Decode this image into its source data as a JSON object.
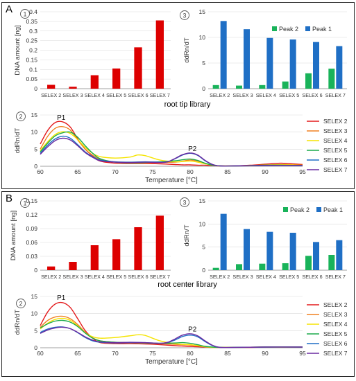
{
  "panels": [
    {
      "letter": "A",
      "library_title": "root tip library",
      "dna_chart": {
        "marker": "1",
        "type": "bar",
        "categories": [
          "SELEX 2",
          "SELEX 3",
          "SELEX 4",
          "SELEX 5",
          "SELEX 6",
          "SELEX 7"
        ],
        "values": [
          0.02,
          0.01,
          0.07,
          0.105,
          0.215,
          0.355
        ],
        "ylabel": "DNA amount [ng]",
        "ylim": [
          0,
          0.4
        ],
        "yticks": [
          0,
          0.05,
          0.1,
          0.15,
          0.2,
          0.25,
          0.3,
          0.35,
          0.4
        ],
        "ytick_labels": [
          "0",
          "0.05",
          "0.1",
          "0.15",
          "0.2",
          "0.25",
          "0.3",
          "0.35",
          "0.4"
        ],
        "color": "#dd0000"
      },
      "peak_chart": {
        "marker": "3",
        "type": "bar",
        "categories": [
          "SELEX 2",
          "SELEX 3",
          "SELEX 4",
          "SELEX 5",
          "SELEX 6",
          "SELEX 7"
        ],
        "ylabel": "ddRn/dT",
        "ylim": [
          0,
          15
        ],
        "yticks": [
          0,
          5,
          10,
          15
        ],
        "ytick_labels": [
          "0",
          "5",
          "10",
          "15"
        ],
        "legend_position": "top-right",
        "series": [
          {
            "name": "Peak 2",
            "color": "#19b35a",
            "values": [
              0.7,
              0.6,
              0.7,
              1.4,
              3.0,
              3.9
            ]
          },
          {
            "name": "Peak 1",
            "color": "#1f6fc5",
            "values": [
              13.2,
              11.6,
              9.9,
              9.6,
              9.1,
              8.3
            ]
          }
        ]
      },
      "melt_chart": {
        "marker": "2",
        "type": "line",
        "xlabel": "Temperature [°C]",
        "ylabel": "ddRn/dT",
        "xlim": [
          60,
          95
        ],
        "ylim": [
          0,
          15
        ],
        "xticks": [
          60,
          65,
          70,
          75,
          80,
          85,
          90,
          95
        ],
        "xtick_labels": [
          "60",
          "65",
          "70",
          "75",
          "80",
          "85",
          "90",
          "95"
        ],
        "yticks": [
          0,
          5,
          10,
          15
        ],
        "ytick_labels": [
          "0",
          "5",
          "10",
          "15"
        ],
        "annotations": [
          {
            "text": "P1",
            "x": 62.8,
            "y": 13.6
          },
          {
            "text": "P2",
            "x": 80.3,
            "y": 4.5
          }
        ],
        "series": [
          {
            "name": "SELEX 2",
            "color": "#e31a1c",
            "x": [
              60,
              61,
              62,
              63,
              64,
              65,
              66,
              67,
              68,
              70,
              72,
              74,
              76,
              78,
              79,
              80,
              81,
              82,
              83,
              84,
              86,
              88,
              90,
              92,
              93,
              95
            ],
            "y": [
              6.5,
              10.5,
              12.8,
              13.0,
              11.5,
              8,
              5,
              3,
              1.5,
              0.9,
              0.8,
              0.8,
              0.7,
              0.5,
              0.4,
              0.4,
              0.3,
              0.3,
              0.2,
              0.1,
              0.1,
              0.3,
              0.6,
              0.9,
              0.8,
              0.5
            ]
          },
          {
            "name": "SELEX 3",
            "color": "#f08020",
            "x": [
              60,
              61,
              62,
              63,
              64,
              65,
              66,
              67,
              68,
              70,
              72,
              74,
              76,
              78,
              79,
              80,
              81,
              82,
              83,
              84,
              86,
              88,
              90,
              92,
              93,
              95
            ],
            "y": [
              5,
              8.8,
              11.1,
              11.6,
              10.6,
              7.7,
              5,
              3.2,
              2,
              1.2,
              1.0,
              1.0,
              1.1,
              1.2,
              1.5,
              1.8,
              1.5,
              0.8,
              0.3,
              0.1,
              0.1,
              0.2,
              0.4,
              0.5,
              0.5,
              0.3
            ]
          },
          {
            "name": "SELEX 4",
            "color": "#f5e400",
            "x": [
              60,
              61,
              62,
              63,
              64,
              65,
              66,
              67,
              68,
              70,
              72,
              73,
              74,
              76,
              78,
              79,
              80,
              81,
              82,
              83,
              84,
              86,
              88,
              90,
              92,
              95
            ],
            "y": [
              4.5,
              7.2,
              9.3,
              10.1,
              9.6,
              7.8,
              5.5,
              3.8,
              2.8,
              2.4,
              2.7,
              3.3,
              3.1,
              1.8,
              1.3,
              1.4,
              1.5,
              1.2,
              0.7,
              0.3,
              0.1,
              0.1,
              0.2,
              0.3,
              0.4,
              0.3
            ]
          },
          {
            "name": "SELEX 5",
            "color": "#1aaa4a",
            "x": [
              60,
              61,
              62,
              63,
              64,
              65,
              66,
              67,
              68,
              70,
              72,
              74,
              76,
              78,
              79,
              80,
              81,
              82,
              83,
              84,
              86,
              88,
              90,
              92,
              95
            ],
            "y": [
              4.2,
              6.8,
              8.9,
              9.8,
              10.0,
              8.5,
              6,
              3.8,
              2.2,
              1.2,
              1.0,
              1.1,
              1.3,
              1.6,
              1.9,
              2.1,
              1.7,
              0.9,
              0.3,
              0.1,
              0.1,
              0.2,
              0.3,
              0.3,
              0.2
            ]
          },
          {
            "name": "SELEX 6",
            "color": "#1f6fc5",
            "x": [
              60,
              61,
              62,
              63,
              64,
              65,
              66,
              67,
              68,
              70,
              72,
              74,
              76,
              77,
              78,
              79,
              80,
              81,
              82,
              83,
              84,
              86,
              90,
              95
            ],
            "y": [
              3.8,
              6.2,
              8.0,
              8.8,
              8.2,
              6.3,
              4.2,
              2.8,
              1.8,
              1.3,
              1.2,
              1.3,
              1.2,
              1.3,
              2.2,
              3.3,
              3.8,
              3.2,
              1.6,
              0.5,
              0.1,
              0.1,
              0.2,
              0.2
            ]
          },
          {
            "name": "SELEX 7",
            "color": "#6a2aa0",
            "x": [
              60,
              61,
              62,
              63,
              64,
              65,
              66,
              67,
              68,
              70,
              72,
              74,
              76,
              77,
              78,
              79,
              80,
              81,
              82,
              83,
              84,
              86,
              90,
              95
            ],
            "y": [
              3.5,
              5.7,
              7.5,
              8.2,
              7.7,
              6.0,
              4.0,
              2.6,
              1.6,
              1.2,
              1.1,
              1.2,
              1.1,
              1.3,
              2.3,
              3.4,
              3.9,
              3.3,
              1.7,
              0.5,
              0.1,
              0.1,
              0.2,
              0.2
            ]
          }
        ]
      }
    },
    {
      "letter": "B",
      "library_title": "root center library",
      "dna_chart": {
        "marker": "1",
        "type": "bar",
        "categories": [
          "SELEX 2",
          "SELEX 3",
          "SELEX 4",
          "SELEX 5",
          "SELEX 6",
          "SELEX 7"
        ],
        "values": [
          0.008,
          0.018,
          0.054,
          0.067,
          0.093,
          0.118
        ],
        "ylabel": "DNA amount [ng]",
        "ylim": [
          0,
          0.15
        ],
        "yticks": [
          0,
          0.03,
          0.06,
          0.09,
          0.12,
          0.15
        ],
        "ytick_labels": [
          "0",
          "0.03",
          "0.06",
          "0.09",
          "0.12",
          "0.15"
        ],
        "color": "#dd0000"
      },
      "peak_chart": {
        "marker": "3",
        "type": "bar",
        "categories": [
          "SELEX 2",
          "SELEX 3",
          "SELEX 4",
          "SELEX 5",
          "SELEX 6",
          "SELEX 7"
        ],
        "ylabel": "ddRn/T",
        "ylim": [
          0,
          15
        ],
        "yticks": [
          0,
          5,
          10,
          15
        ],
        "ytick_labels": [
          "0",
          "5",
          "10",
          "15"
        ],
        "legend_position": "top-right",
        "series": [
          {
            "name": "Peak 2",
            "color": "#19b35a",
            "values": [
              0.5,
              1.3,
              1.4,
              1.5,
              3.1,
              3.3
            ]
          },
          {
            "name": "Peak 1",
            "color": "#1f6fc5",
            "values": [
              12.2,
              8.9,
              8.3,
              8.1,
              6.1,
              6.5
            ]
          }
        ]
      },
      "melt_chart": {
        "marker": "2",
        "type": "line",
        "xlabel": "Temperature [°C]",
        "ylabel": "ddRn/dT",
        "xlim": [
          60,
          95
        ],
        "ylim": [
          0,
          15
        ],
        "xticks": [
          60,
          65,
          70,
          75,
          80,
          85,
          90,
          95
        ],
        "xtick_labels": [
          "60",
          "65",
          "70",
          "75",
          "80",
          "85",
          "90",
          "95"
        ],
        "yticks": [
          0,
          5,
          10,
          15
        ],
        "ytick_labels": [
          "0",
          "5",
          "10",
          "15"
        ],
        "annotations": [
          {
            "text": "P1",
            "x": 62.8,
            "y": 14.0
          },
          {
            "text": "P2",
            "x": 80.3,
            "y": 4.8
          }
        ],
        "series": [
          {
            "name": "SELEX 2",
            "color": "#e31a1c",
            "x": [
              60,
              61,
              62,
              63,
              64,
              65,
              66,
              67,
              68,
              70,
              72,
              74,
              76,
              78,
              79,
              80,
              81,
              82,
              83,
              84,
              86,
              88,
              90,
              92,
              95
            ],
            "y": [
              6.5,
              10.5,
              12.8,
              13.2,
              11.8,
              8.5,
              5,
              2.8,
              1.5,
              1.2,
              1.2,
              1.1,
              0.9,
              0.6,
              0.5,
              0.4,
              0.3,
              0.2,
              0.1,
              0.1,
              0.1,
              0.1,
              0.2,
              0.2,
              0.2
            ]
          },
          {
            "name": "SELEX 3",
            "color": "#f08020",
            "x": [
              60,
              61,
              62,
              63,
              64,
              65,
              66,
              67,
              68,
              70,
              72,
              74,
              76,
              78,
              79,
              80,
              81,
              82,
              83,
              84,
              86,
              90,
              95
            ],
            "y": [
              6,
              8.0,
              9.0,
              9.2,
              8.5,
              6.8,
              4.5,
              2.9,
              2.0,
              1.6,
              1.5,
              1.4,
              1.2,
              1.0,
              0.9,
              0.8,
              0.6,
              0.3,
              0.1,
              0.1,
              0.1,
              0.2,
              0.2
            ]
          },
          {
            "name": "SELEX 4",
            "color": "#f5e400",
            "x": [
              60,
              61,
              62,
              63,
              64,
              65,
              66,
              67,
              68,
              70,
              72,
              73,
              74,
              76,
              78,
              79,
              80,
              81,
              82,
              83,
              84,
              86,
              90,
              95
            ],
            "y": [
              5.5,
              7.2,
              8.3,
              8.6,
              8.0,
              6.4,
              4.4,
              3.2,
              2.8,
              3.0,
              3.5,
              3.8,
              3.6,
              2.0,
              1.2,
              1.0,
              0.9,
              0.6,
              0.3,
              0.1,
              0.1,
              0.1,
              0.2,
              0.2
            ]
          },
          {
            "name": "SELEX 5",
            "color": "#1aaa4a",
            "x": [
              60,
              61,
              62,
              63,
              64,
              65,
              66,
              67,
              68,
              70,
              72,
              74,
              76,
              78,
              79,
              80,
              81,
              82,
              83,
              84,
              86,
              90,
              95
            ],
            "y": [
              5.8,
              7.0,
              7.8,
              8.0,
              7.5,
              6.2,
              4.3,
              2.8,
              2.0,
              1.6,
              1.5,
              1.4,
              1.3,
              1.4,
              1.5,
              1.3,
              0.9,
              0.4,
              0.2,
              0.1,
              0.1,
              0.2,
              0.2
            ]
          },
          {
            "name": "SELEX 6",
            "color": "#1f6fc5",
            "x": [
              60,
              61,
              62,
              63,
              64,
              65,
              66,
              67,
              68,
              70,
              72,
              74,
              76,
              77,
              78,
              79,
              80,
              81,
              82,
              83,
              84,
              86,
              90,
              95
            ],
            "y": [
              4.5,
              5.5,
              6.0,
              6.1,
              5.6,
              4.4,
              3.0,
              2.0,
              1.6,
              1.4,
              1.5,
              1.5,
              1.3,
              1.5,
              2.3,
              3.3,
              3.7,
              3.2,
              1.8,
              0.6,
              0.1,
              0.1,
              0.2,
              0.2
            ]
          },
          {
            "name": "SELEX 7",
            "color": "#6a2aa0",
            "x": [
              60,
              61,
              62,
              63,
              64,
              65,
              66,
              67,
              68,
              70,
              72,
              74,
              76,
              77,
              78,
              79,
              80,
              81,
              82,
              83,
              84,
              86,
              90,
              95
            ],
            "y": [
              4.2,
              5.2,
              5.8,
              6.0,
              5.6,
              4.5,
              3.2,
              2.2,
              1.7,
              1.5,
              1.6,
              1.5,
              1.3,
              1.6,
              2.6,
              3.7,
              4.1,
              3.5,
              2.0,
              0.7,
              0.1,
              0.1,
              0.2,
              0.2
            ]
          }
        ]
      }
    }
  ]
}
